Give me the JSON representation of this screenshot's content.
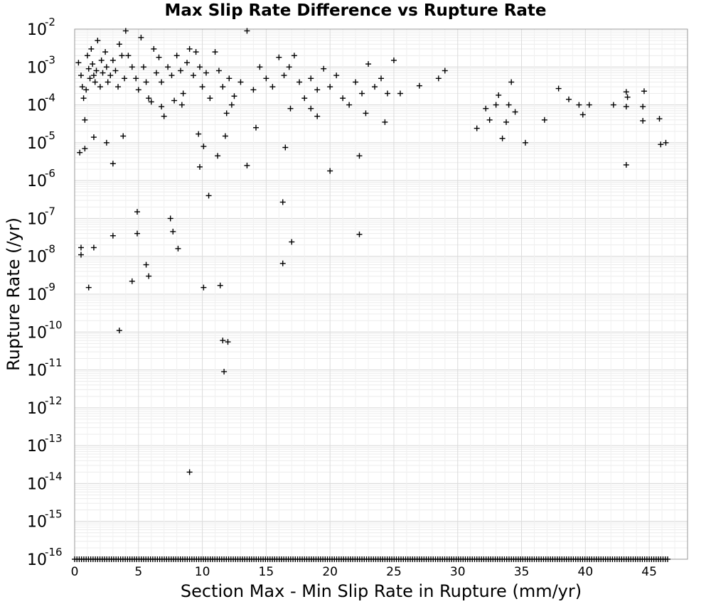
{
  "chart_data": {
    "type": "scatter",
    "title": "Max Slip Rate Difference vs Rupture Rate",
    "xlabel": "Section Max - Min Slip Rate in Rupture (mm/yr)",
    "ylabel": "Rupture Rate (/yr)",
    "xlim": [
      0,
      48
    ],
    "ylim": [
      1e-16,
      0.01
    ],
    "yscale": "log",
    "grid": true,
    "legend": "none",
    "marker": "+",
    "marker_color": "#000000",
    "x_ticks": [
      "0",
      "5",
      "10",
      "15",
      "20",
      "25",
      "30",
      "35",
      "40",
      "45"
    ],
    "y_ticks": [
      {
        "base": "10",
        "exp": "-16"
      },
      {
        "base": "10",
        "exp": "-15"
      },
      {
        "base": "10",
        "exp": "-14"
      },
      {
        "base": "10",
        "exp": "-13"
      },
      {
        "base": "10",
        "exp": "-12"
      },
      {
        "base": "10",
        "exp": "-11"
      },
      {
        "base": "10",
        "exp": "-10"
      },
      {
        "base": "10",
        "exp": "-9"
      },
      {
        "base": "10",
        "exp": "-8"
      },
      {
        "base": "10",
        "exp": "-7"
      },
      {
        "base": "10",
        "exp": "-6"
      },
      {
        "base": "10",
        "exp": "-5"
      },
      {
        "base": "10",
        "exp": "-4"
      },
      {
        "base": "10",
        "exp": "-3"
      },
      {
        "base": "10",
        "exp": "-2"
      }
    ],
    "points": [
      [
        0.3,
        0.0013
      ],
      [
        0.5,
        0.0006
      ],
      [
        0.6,
        0.0003
      ],
      [
        0.7,
        0.00015
      ],
      [
        0.8,
        4e-05
      ],
      [
        0.9,
        0.00025
      ],
      [
        1.0,
        0.002
      ],
      [
        1.1,
        0.0009
      ],
      [
        1.2,
        0.0005
      ],
      [
        1.3,
        0.003
      ],
      [
        1.4,
        0.0012
      ],
      [
        1.5,
        0.0006
      ],
      [
        1.6,
        0.0004
      ],
      [
        1.7,
        0.0008
      ],
      [
        1.8,
        0.005
      ],
      [
        2.0,
        0.0003
      ],
      [
        2.1,
        0.0015
      ],
      [
        2.2,
        0.0007
      ],
      [
        2.4,
        0.0025
      ],
      [
        2.5,
        0.001
      ],
      [
        2.6,
        0.0004
      ],
      [
        2.8,
        0.0006
      ],
      [
        3.0,
        0.0015
      ],
      [
        3.2,
        0.0008
      ],
      [
        3.4,
        0.0003
      ],
      [
        3.5,
        0.004
      ],
      [
        3.7,
        0.002
      ],
      [
        3.9,
        0.0005
      ],
      [
        4.0,
        0.009
      ],
      [
        4.2,
        0.002
      ],
      [
        4.5,
        0.001
      ],
      [
        4.8,
        0.0005
      ],
      [
        5.0,
        0.00025
      ],
      [
        5.2,
        0.006
      ],
      [
        5.4,
        0.001
      ],
      [
        5.6,
        0.0004
      ],
      [
        5.8,
        0.00015
      ],
      [
        6.0,
        0.00012
      ],
      [
        6.2,
        0.003
      ],
      [
        6.4,
        0.0007
      ],
      [
        6.6,
        0.0018
      ],
      [
        6.8,
        0.0004
      ],
      [
        7.0,
        5e-05
      ],
      [
        7.3,
        0.001
      ],
      [
        7.6,
        0.0006
      ],
      [
        7.8,
        0.00013
      ],
      [
        8.0,
        0.002
      ],
      [
        8.3,
        0.0008
      ],
      [
        8.5,
        0.0002
      ],
      [
        8.8,
        0.0013
      ],
      [
        9.0,
        0.003
      ],
      [
        9.3,
        0.0006
      ],
      [
        9.5,
        0.0025
      ],
      [
        9.8,
        0.001
      ],
      [
        10.0,
        0.0003
      ],
      [
        10.3,
        0.0007
      ],
      [
        10.6,
        0.00015
      ],
      [
        11.0,
        0.0025
      ],
      [
        11.3,
        0.0008
      ],
      [
        11.6,
        0.0003
      ],
      [
        11.9,
        6e-05
      ],
      [
        12.1,
        0.0005
      ],
      [
        12.5,
        0.00017
      ],
      [
        13.0,
        0.0004
      ],
      [
        13.5,
        0.009
      ],
      [
        14.0,
        0.00025
      ],
      [
        14.5,
        0.001
      ],
      [
        15.0,
        0.0005
      ],
      [
        15.5,
        0.0003
      ],
      [
        16.0,
        0.0018
      ],
      [
        16.4,
        0.0006
      ],
      [
        16.8,
        0.001
      ],
      [
        17.2,
        0.002
      ],
      [
        17.6,
        0.0004
      ],
      [
        18.0,
        0.00015
      ],
      [
        18.5,
        0.0005
      ],
      [
        19.0,
        0.00025
      ],
      [
        19.5,
        0.0009
      ],
      [
        20.0,
        0.0003
      ],
      [
        20.5,
        0.0006
      ],
      [
        21.0,
        0.00015
      ],
      [
        21.5,
        0.0001
      ],
      [
        22.0,
        0.0004
      ],
      [
        22.5,
        0.0002
      ],
      [
        22.8,
        6e-05
      ],
      [
        23.0,
        0.0012
      ],
      [
        23.5,
        0.0003
      ],
      [
        24.0,
        0.0005
      ],
      [
        24.5,
        0.0002
      ],
      [
        25.0,
        0.0015
      ],
      [
        25.5,
        0.0002
      ],
      [
        27.0,
        0.00032
      ],
      [
        28.5,
        0.0005
      ],
      [
        29.0,
        0.0008
      ],
      [
        31.5,
        2.4e-05
      ],
      [
        32.2,
        8e-05
      ],
      [
        32.5,
        4e-05
      ],
      [
        33.0,
        0.0001
      ],
      [
        33.2,
        0.00018
      ],
      [
        33.5,
        1.3e-05
      ],
      [
        33.8,
        3.5e-05
      ],
      [
        34.0,
        0.0001
      ],
      [
        34.2,
        0.0004
      ],
      [
        34.5,
        6.5e-05
      ],
      [
        35.3,
        1e-05
      ],
      [
        36.8,
        4e-05
      ],
      [
        37.9,
        0.00027
      ],
      [
        38.7,
        0.00014
      ],
      [
        39.5,
        0.0001
      ],
      [
        39.8,
        5.5e-05
      ],
      [
        40.3,
        0.0001
      ],
      [
        42.2,
        0.0001
      ],
      [
        43.2,
        0.00022
      ],
      [
        43.2,
        9e-05
      ],
      [
        43.3,
        0.00016
      ],
      [
        44.5,
        9e-05
      ],
      [
        44.6,
        0.00023
      ],
      [
        44.5,
        3.8e-05
      ],
      [
        45.8,
        4.3e-05
      ],
      [
        45.9,
        9e-06
      ],
      [
        46.3,
        1e-05
      ],
      [
        0.4,
        5.5e-06
      ],
      [
        0.5,
        1.7e-08
      ],
      [
        0.5,
        1.1e-08
      ],
      [
        1.1,
        1.5e-09
      ],
      [
        1.5,
        1.7e-08
      ],
      [
        3.0,
        3.5e-08
      ],
      [
        3.0,
        2.8e-06
      ],
      [
        3.5,
        1.1e-10
      ],
      [
        4.5,
        2.2e-09
      ],
      [
        4.9,
        1.5e-07
      ],
      [
        4.9,
        4e-08
      ],
      [
        5.6,
        6e-09
      ],
      [
        5.8,
        3e-09
      ],
      [
        7.5,
        1e-07
      ],
      [
        7.7,
        4.5e-08
      ],
      [
        8.1,
        1.6e-08
      ],
      [
        9.0,
        2e-14
      ],
      [
        9.7,
        1.7e-05
      ],
      [
        9.8,
        2.3e-06
      ],
      [
        10.1,
        8e-06
      ],
      [
        10.1,
        1.5e-09
      ],
      [
        10.5,
        4e-07
      ],
      [
        11.4,
        1.7e-09
      ],
      [
        11.6,
        6e-11
      ],
      [
        11.7,
        9e-12
      ],
      [
        12.0,
        5.5e-11
      ],
      [
        13.5,
        2.5e-06
      ],
      [
        16.3,
        2.7e-07
      ],
      [
        16.3,
        6.5e-09
      ],
      [
        16.5,
        7.5e-06
      ],
      [
        17.0,
        2.4e-08
      ],
      [
        20.0,
        1.8e-06
      ],
      [
        22.3,
        3.8e-08
      ],
      [
        22.3,
        4.5e-06
      ],
      [
        43.2,
        2.6e-06
      ],
      [
        0.8,
        7e-06
      ],
      [
        1.5,
        1.4e-05
      ],
      [
        2.5,
        1e-05
      ],
      [
        3.8,
        1.5e-05
      ],
      [
        11.2,
        4.5e-06
      ],
      [
        11.8,
        1.5e-05
      ],
      [
        14.2,
        2.5e-05
      ],
      [
        24.3,
        3.5e-05
      ],
      [
        18.5,
        8e-05
      ],
      [
        19.0,
        5e-05
      ],
      [
        6.8,
        9e-05
      ],
      [
        8.4,
        0.0001
      ],
      [
        12.3,
        0.0001
      ],
      [
        16.9,
        8e-05
      ]
    ],
    "floor_points_x_range": [
      0,
      46.5
    ],
    "floor_value": 1e-16
  }
}
